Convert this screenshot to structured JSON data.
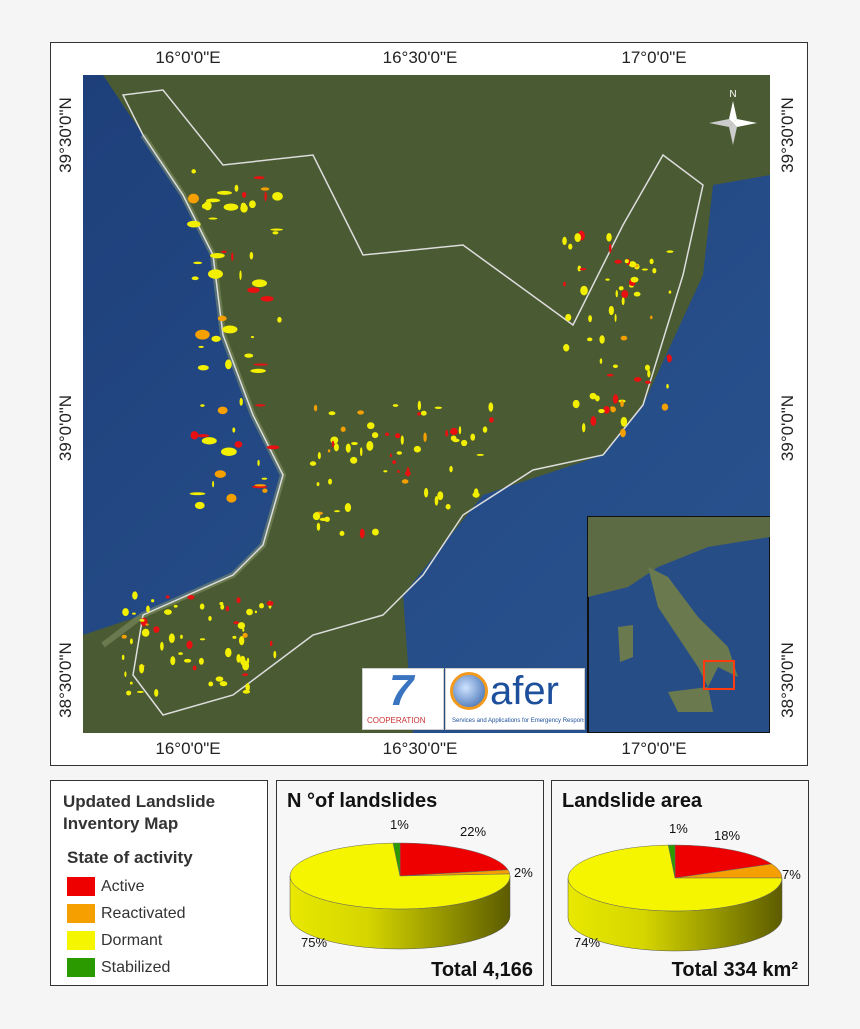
{
  "map": {
    "top_ticks": [
      "16°0'0\"E",
      "16°30'0\"E",
      "17°0'0\"E"
    ],
    "bottom_ticks": [
      "16°0'0\"E",
      "16°30'0\"E",
      "17°0'0\"E"
    ],
    "left_ticks": [
      "39°30'0\"N",
      "39°0'0\"N",
      "38°30'0\"N"
    ],
    "right_ticks": [
      "39°30'0\"N",
      "39°0'0\"N",
      "38°30'0\"N"
    ],
    "north_label": "N",
    "logos": {
      "fp7": "COOPERATION",
      "safer": "afer",
      "safer_tagline": "Services and Applications for Emergency Response"
    }
  },
  "legend": {
    "title_line1": "Updated Landslide",
    "title_line2": "Inventory Map",
    "subtitle": "State of activity",
    "items": [
      {
        "label": "Active",
        "color": "#ee0000"
      },
      {
        "label": "Reactivated",
        "color": "#f5a000"
      },
      {
        "label": "Dormant",
        "color": "#f5f500"
      },
      {
        "label": "Stabilized",
        "color": "#2a9a00"
      }
    ]
  },
  "chart_data": [
    {
      "type": "pie",
      "title": "N °of landslides",
      "categories": [
        "Active",
        "Reactivated",
        "Dormant",
        "Stabilized"
      ],
      "values": [
        22,
        2,
        75,
        1
      ],
      "labels": [
        "22%",
        "2%",
        "75%",
        "1%"
      ],
      "total": "Total 4,166"
    },
    {
      "type": "pie",
      "title": "Landslide area",
      "categories": [
        "Active",
        "Reactivated",
        "Dormant",
        "Stabilized"
      ],
      "values": [
        18,
        7,
        74,
        1
      ],
      "labels": [
        "18%",
        "7%",
        "74%",
        "1%"
      ],
      "total": "Total 334 km²"
    }
  ]
}
